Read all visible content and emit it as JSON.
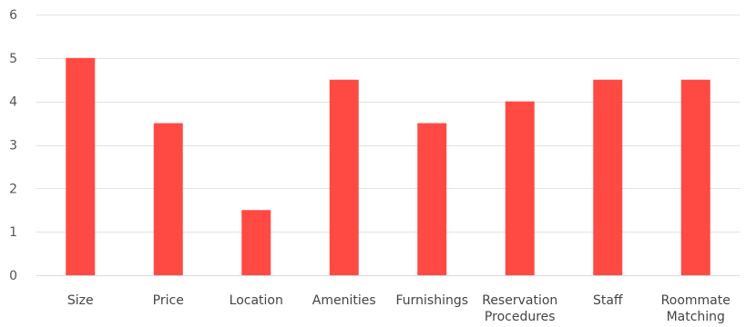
{
  "chart_data": {
    "type": "bar",
    "categories": [
      [
        "Size"
      ],
      [
        "Price"
      ],
      [
        "Location"
      ],
      [
        "Amenities"
      ],
      [
        "Furnishings"
      ],
      [
        "Reservation",
        "Procedures"
      ],
      [
        "Staff"
      ],
      [
        "Roommate",
        "Matching"
      ]
    ],
    "values": [
      5,
      3.5,
      1.5,
      4.5,
      3.5,
      4,
      4.5,
      4.5
    ],
    "ylim": [
      0,
      6
    ],
    "yticks": [
      0,
      1,
      2,
      3,
      4,
      5,
      6
    ],
    "grid": true,
    "legend": "none",
    "colors": {
      "bar": "#ff4a44"
    }
  }
}
